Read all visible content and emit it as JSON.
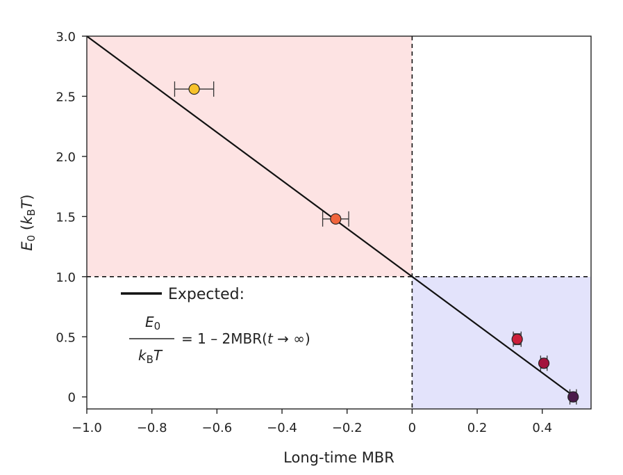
{
  "chart_data": {
    "type": "scatter",
    "xlabel": "Long-time MBR",
    "ylabel_main": "E",
    "ylabel_sub": "0",
    "ylabel_k": "k",
    "ylabel_ksub": "B",
    "ylabel_T": "T",
    "xlim": [
      -1.0,
      0.55
    ],
    "ylim": [
      -0.1,
      3.0
    ],
    "x_ticks": [
      -1.0,
      -0.8,
      -0.6,
      -0.4,
      -0.2,
      0,
      0.2,
      0.4
    ],
    "x_tick_labels": [
      "−1.0",
      "−0.8",
      "−0.6",
      "−0.4",
      "−0.2",
      "0",
      "0.2",
      "0.4"
    ],
    "y_ticks": [
      0,
      0.5,
      1.0,
      1.5,
      2.0,
      2.5,
      3.0
    ],
    "y_tick_labels": [
      "0",
      "0.5",
      "1.0",
      "1.5",
      "2.0",
      "2.5",
      "3.0"
    ],
    "grid": false,
    "regions": [
      {
        "x0": -1.0,
        "x1": 0,
        "y0": 1.0,
        "y1": 3.0,
        "color": "#fde3e3"
      },
      {
        "x0": 0,
        "x1": 0.55,
        "y0": -0.1,
        "y1": 1.0,
        "color": "#e3e3fb"
      }
    ],
    "reference_lines": {
      "x": 0,
      "y": 1.0
    },
    "expected_line": {
      "x": [
        -1.0,
        0.5
      ],
      "y": [
        3.0,
        0.0
      ]
    },
    "points": [
      {
        "x": -0.67,
        "y": 2.56,
        "xerr": 0.06,
        "yerr": 0.0,
        "color": "#f7c22b"
      },
      {
        "x": -0.235,
        "y": 1.48,
        "xerr": 0.04,
        "yerr": 0.0,
        "color": "#f0643c"
      },
      {
        "x": 0.323,
        "y": 0.48,
        "xerr": 0.012,
        "yerr": 0.045,
        "color": "#cc1f3a"
      },
      {
        "x": 0.405,
        "y": 0.28,
        "xerr": 0.01,
        "yerr": 0.04,
        "color": "#a3133c"
      },
      {
        "x": 0.495,
        "y": 0.0,
        "xerr": 0.01,
        "yerr": 0.04,
        "color": "#4a1a4a"
      }
    ],
    "legend": {
      "placement": "lower-left",
      "label": "Expected:",
      "eq_numerator_main": "E",
      "eq_numerator_sub": "0",
      "eq_denominator_k": "k",
      "eq_denominator_sub": "B",
      "eq_denominator_T": "T",
      "eq_rhs_pre": "= 1 – 2MBR(",
      "eq_rhs_t": "t",
      "eq_rhs_post": " → ∞)"
    }
  }
}
